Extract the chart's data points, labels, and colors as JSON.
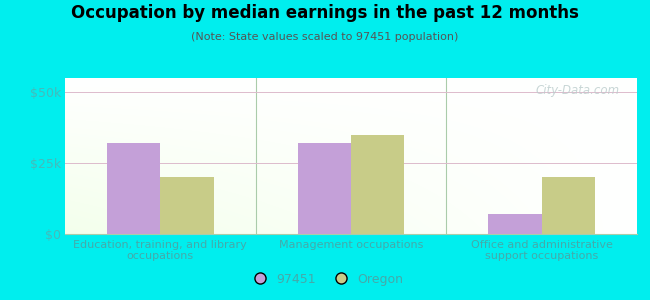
{
  "title": "Occupation by median earnings in the past 12 months",
  "subtitle": "(Note: State values scaled to 97451 population)",
  "categories": [
    "Education, training, and library\noccupations",
    "Management occupations",
    "Office and administrative\nsupport occupations"
  ],
  "values_97451": [
    32000,
    32000,
    7000
  ],
  "values_oregon": [
    20000,
    35000,
    20000
  ],
  "bar_color_97451": "#c4a0d8",
  "bar_color_oregon": "#c8cc88",
  "background_outer": "#00eeee",
  "ylim": [
    0,
    55000
  ],
  "yticks": [
    0,
    25000,
    50000
  ],
  "ytick_labels": [
    "$0",
    "$25k",
    "$50k"
  ],
  "legend_label_1": "97451",
  "legend_label_2": "Oregon",
  "watermark": "City-Data.com",
  "bar_width": 0.28,
  "tick_color": "#44bbbb",
  "label_color": "#44aaaa"
}
